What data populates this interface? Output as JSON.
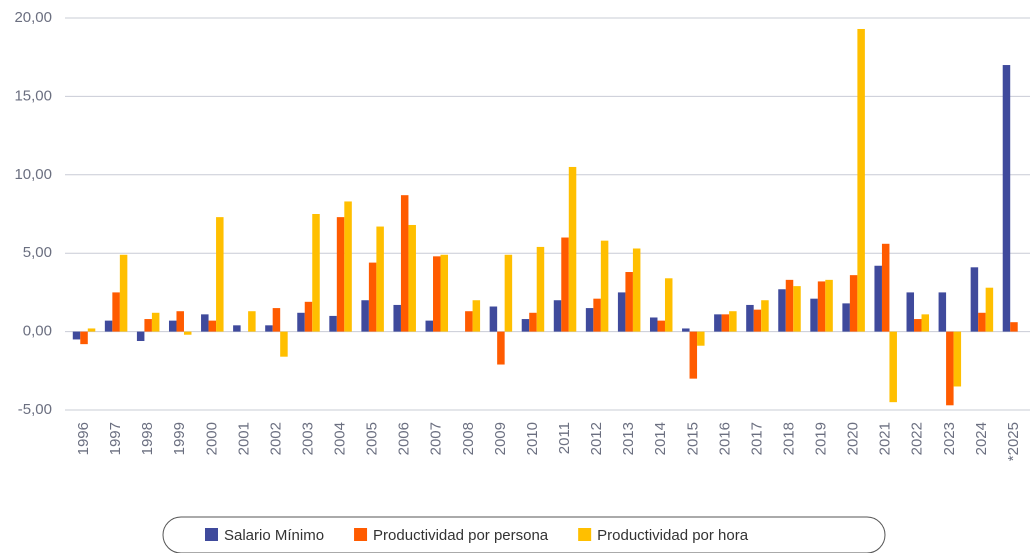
{
  "chart_data": {
    "type": "bar",
    "categories": [
      "1996",
      "1997",
      "1998",
      "1999",
      "2000",
      "2001",
      "2002",
      "2003",
      "2004",
      "2005",
      "2006",
      "2007",
      "2008",
      "2009",
      "2010",
      "2011",
      "2012",
      "2013",
      "2014",
      "2015",
      "2016",
      "2017",
      "2018",
      "2019",
      "2020",
      "2021",
      "2022",
      "2023",
      "2024",
      "*2025"
    ],
    "series": [
      {
        "name": "Salario Mínimo",
        "color": "#3f4a9c",
        "values": [
          -0.5,
          0.7,
          -0.6,
          0.7,
          1.1,
          0.4,
          0.4,
          1.2,
          1.0,
          2.0,
          1.7,
          0.7,
          0,
          1.6,
          0.8,
          2.0,
          1.5,
          2.5,
          0.9,
          0.2,
          1.1,
          1.7,
          2.7,
          2.1,
          1.8,
          4.2,
          2.5,
          2.5,
          4.1,
          17.0
        ]
      },
      {
        "name": "Productividad por persona",
        "color": "#ff5b00",
        "values": [
          -0.8,
          2.5,
          0.8,
          1.3,
          0.7,
          0,
          1.5,
          1.9,
          7.3,
          4.4,
          8.7,
          4.8,
          1.3,
          -2.1,
          1.2,
          6.0,
          2.1,
          3.8,
          0.7,
          -3.0,
          1.1,
          1.4,
          3.3,
          3.2,
          3.6,
          5.6,
          0.8,
          -4.7,
          1.2,
          0.6
        ]
      },
      {
        "name": "Productividad por hora",
        "color": "#ffbf00",
        "values": [
          0.2,
          4.9,
          1.2,
          -0.2,
          7.3,
          1.3,
          -1.6,
          7.5,
          8.3,
          6.7,
          6.8,
          4.9,
          2.0,
          4.9,
          5.4,
          10.5,
          5.8,
          5.3,
          3.4,
          -0.9,
          1.3,
          2.0,
          2.9,
          3.3,
          19.3,
          -4.5,
          1.1,
          -3.5,
          2.8,
          null
        ]
      }
    ],
    "ylim": [
      -5,
      20
    ],
    "yticks": [
      {
        "value": -5,
        "label": "-5,00"
      },
      {
        "value": 0,
        "label": "0,00"
      },
      {
        "value": 5,
        "label": "5,00"
      },
      {
        "value": 10,
        "label": "10,00"
      },
      {
        "value": 15,
        "label": "15,00"
      },
      {
        "value": 20,
        "label": "20,00"
      }
    ],
    "grid": true
  }
}
